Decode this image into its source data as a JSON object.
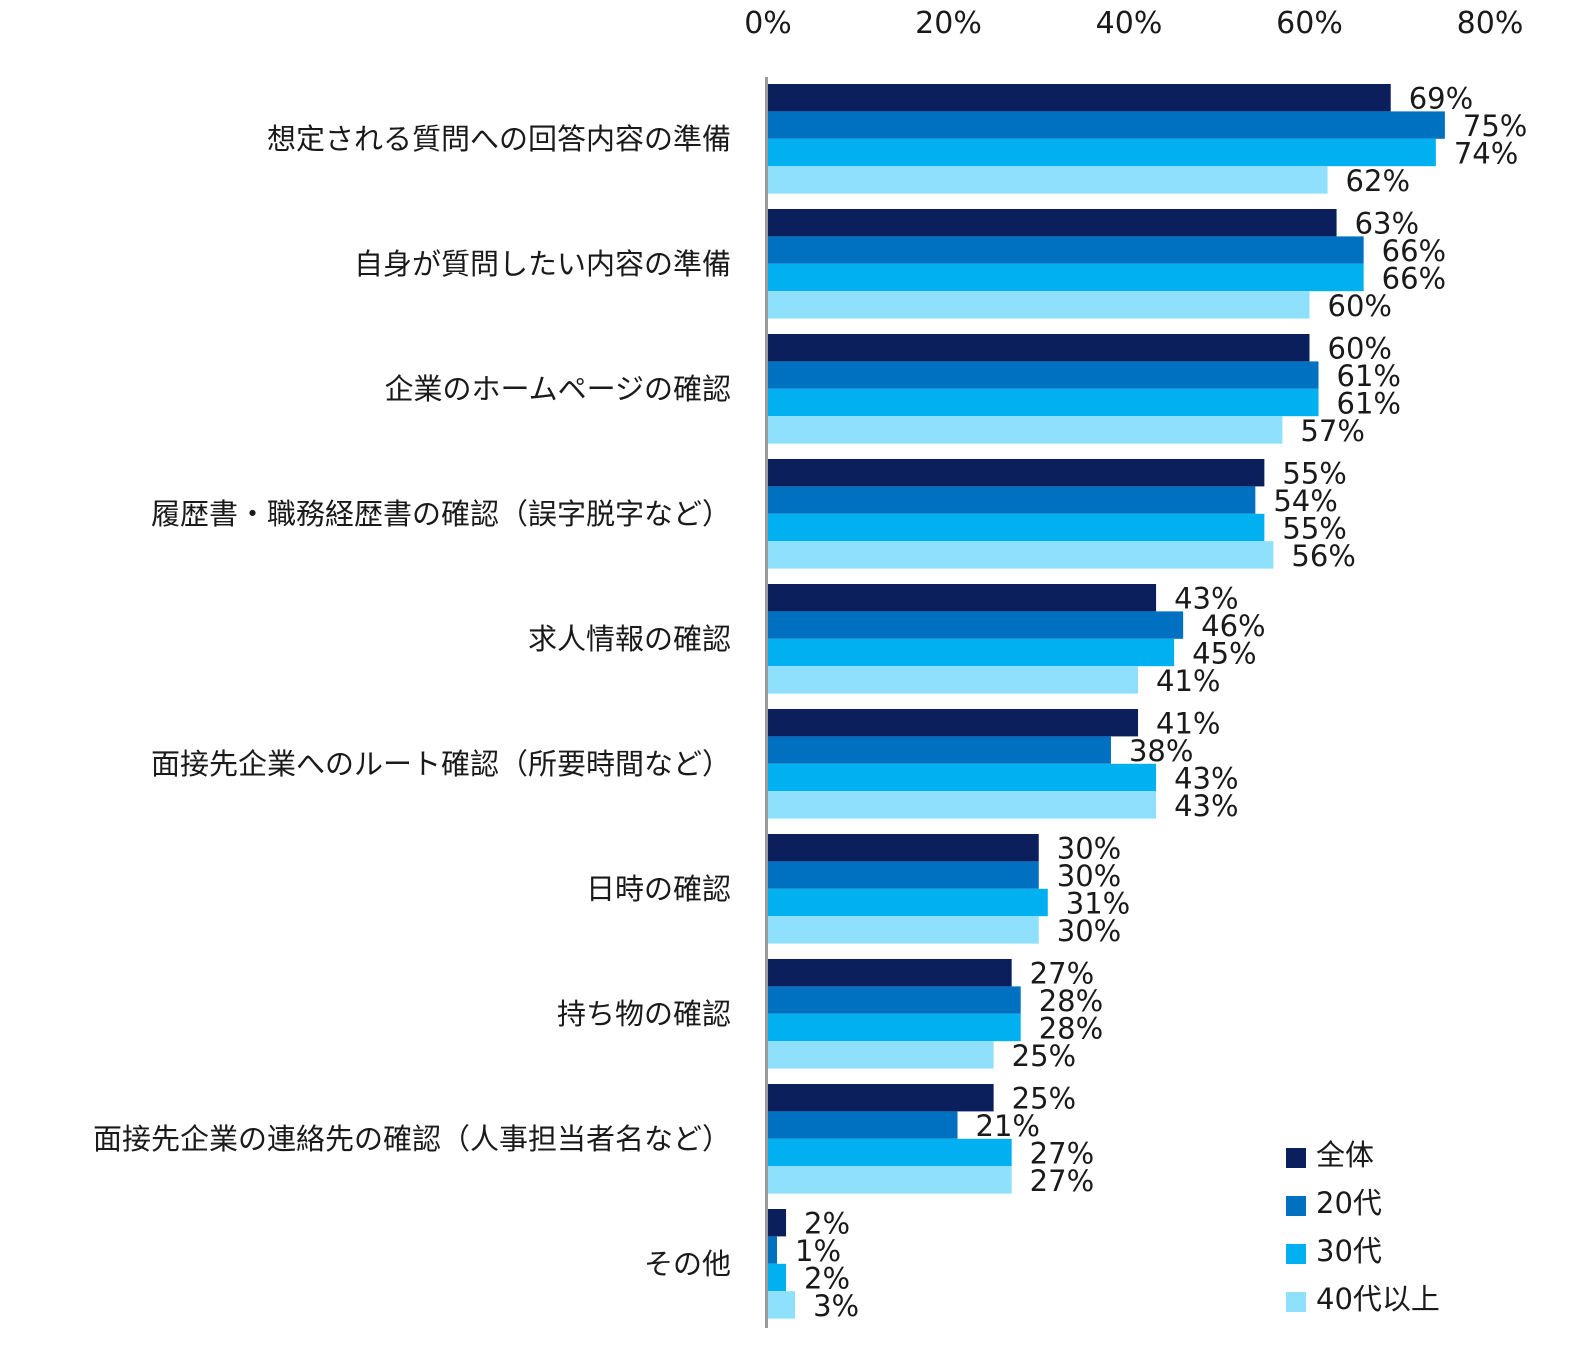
{
  "chart_data": {
    "type": "bar",
    "orientation": "horizontal",
    "title": "",
    "xlabel": "",
    "ylabel": "",
    "xlim": [
      0,
      80
    ],
    "x_ticks": [
      "0%",
      "20%",
      "40%",
      "60%",
      "80%"
    ],
    "x_tick_values": [
      0,
      20,
      40,
      60,
      80
    ],
    "axis_position": "top",
    "grid": false,
    "legend_position": "bottom-right",
    "categories": [
      "想定される質問への回答内容の準備",
      "自身が質問したい内容の準備",
      "企業のホームページの確認",
      "履歴書・職務経歴書の確認（誤字脱字など）",
      "求人情報の確認",
      "面接先企業へのルート確認（所要時間など）",
      "日時の確認",
      "持ち物の確認",
      "面接先企業の連絡先の確認（人事担当者名など）",
      "その他"
    ],
    "series": [
      {
        "name": "全体",
        "color": "#0b1f5c",
        "values": [
          69,
          63,
          60,
          55,
          43,
          41,
          30,
          27,
          25,
          2
        ],
        "labels": [
          "69%",
          "63%",
          "60%",
          "55%",
          "43%",
          "41%",
          "30%",
          "27%",
          "25%",
          "2%"
        ]
      },
      {
        "name": "20代",
        "color": "#0070c0",
        "values": [
          75,
          66,
          61,
          54,
          46,
          38,
          30,
          28,
          21,
          1
        ],
        "labels": [
          "75%",
          "66%",
          "61%",
          "54%",
          "46%",
          "38%",
          "30%",
          "28%",
          "21%",
          "1%"
        ]
      },
      {
        "name": "30代",
        "color": "#00b0f0",
        "values": [
          74,
          66,
          61,
          55,
          45,
          43,
          31,
          28,
          27,
          2
        ],
        "labels": [
          "74%",
          "66%",
          "61%",
          "55%",
          "45%",
          "43%",
          "31%",
          "28%",
          "27%",
          "2%"
        ]
      },
      {
        "name": "40代以上",
        "color": "#8ee0fc",
        "values": [
          62,
          60,
          57,
          56,
          41,
          43,
          30,
          25,
          27,
          3
        ],
        "labels": [
          "62%",
          "60%",
          "57%",
          "56%",
          "41%",
          "43%",
          "30%",
          "25%",
          "27%",
          "3%"
        ]
      }
    ]
  }
}
